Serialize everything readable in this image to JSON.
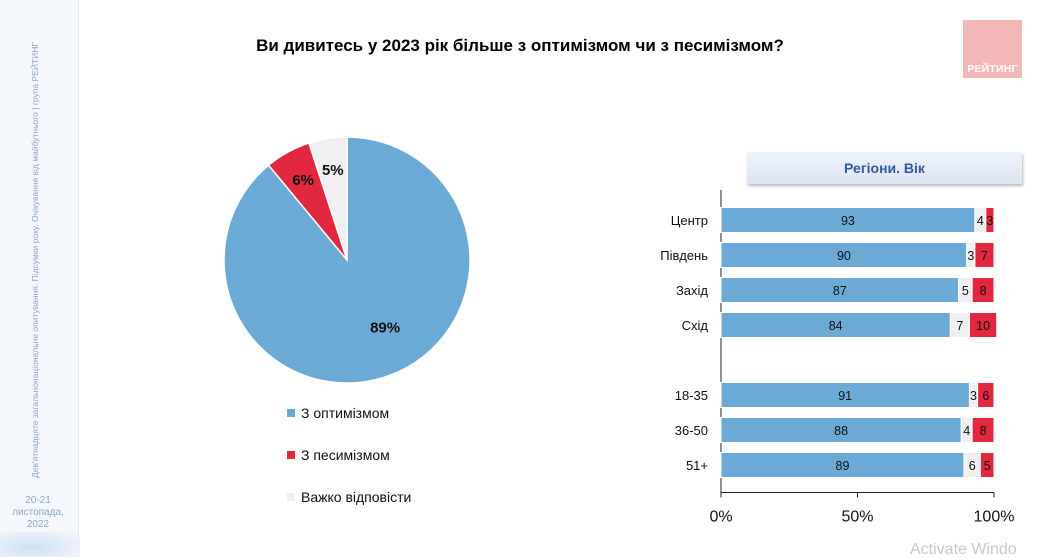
{
  "sidebar": {
    "vertical_text": "Дев'ятнадцяте загальнонаціональне опитування. Підсумки року. Очікування від майбутнього | група РЕЙТИНГ",
    "date_line1": "20-21",
    "date_line2": "листопада, 2022"
  },
  "logo": {
    "text": "РЕЙТИНГ"
  },
  "watermark": "Activate Windo",
  "chart_data": [
    {
      "type": "pie",
      "title": "Ви дивитесь у 2023 рік більше з оптимізмом чи з песимізмом?",
      "slices": [
        {
          "name": "З оптимізмом",
          "value": 89,
          "label": "89%",
          "color": "#6aaad5"
        },
        {
          "name": "З песимізмом",
          "value": 6,
          "label": "6%",
          "color": "#e2283f"
        },
        {
          "name": "Важко відповісти",
          "value": 5,
          "label": "5%",
          "color": "#efeff1"
        }
      ],
      "legend_position": "bottom"
    },
    {
      "type": "bar",
      "orientation": "horizontal",
      "stacked": true,
      "percent_stacked": true,
      "title": "Регіони. Вік",
      "categories": [
        "Центр",
        "Південь",
        "Захід",
        "Схід",
        "",
        "18-35",
        "36-50",
        "51+"
      ],
      "series": [
        {
          "name": "З оптимізмом",
          "color": "#6aaad5",
          "values": [
            93,
            90,
            87,
            84,
            null,
            91,
            88,
            89
          ]
        },
        {
          "name": "Важко відповісти",
          "color": "#efeff1",
          "values": [
            4,
            3,
            5,
            7,
            null,
            3,
            4,
            6
          ]
        },
        {
          "name": "З песимізмом",
          "color": "#e2283f",
          "values": [
            3,
            7,
            8,
            10,
            null,
            6,
            8,
            5
          ]
        }
      ],
      "x_ticks": [
        "0%",
        "50%",
        "100%"
      ],
      "xlim": [
        0,
        100
      ],
      "grid": false
    }
  ]
}
